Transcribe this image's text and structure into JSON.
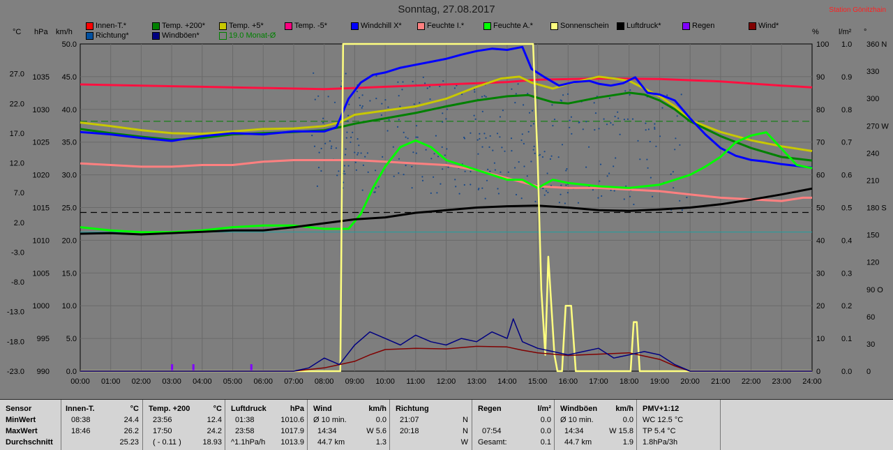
{
  "title": "Sonntag, 27.08.2017",
  "station": "Station Gönitzhain",
  "legend": [
    {
      "label": "Innen-T.*",
      "color": "#ff0000",
      "hollow": false
    },
    {
      "label": "Temp. +200*",
      "color": "#008000",
      "hollow": false
    },
    {
      "label": "Temp. +5*",
      "color": "#c8c800",
      "hollow": false
    },
    {
      "label": "Temp. -5*",
      "color": "#ff0080",
      "hollow": false
    },
    {
      "label": "Windchill X*",
      "color": "#0000ff",
      "hollow": false
    },
    {
      "label": "Feuchte I.*",
      "color": "#ff8080",
      "hollow": false
    },
    {
      "label": "Feuchte A.*",
      "color": "#00ff00",
      "hollow": false
    },
    {
      "label": "Sonnenschein",
      "color": "#ffff80",
      "hollow": false
    },
    {
      "label": "Luftdruck*",
      "color": "#000000",
      "hollow": false
    },
    {
      "label": "Regen",
      "color": "#8000ff",
      "hollow": false
    },
    {
      "label": "Wind*",
      "color": "#800000",
      "hollow": false
    },
    {
      "label": "Richtung*",
      "color": "#0050a0",
      "hollow": false
    },
    {
      "label": "Windböen*",
      "color": "#000080",
      "hollow": false
    },
    {
      "label": "19.0 Monat-Ø",
      "color": "#008000",
      "hollow": true
    }
  ],
  "units": {
    "temp": "°C",
    "pressure": "hPa",
    "wind": "km/h",
    "percent": "%",
    "rain": "l/m²",
    "dir": "°"
  },
  "chart_data": {
    "type": "line",
    "xlabel": "",
    "x_ticks": [
      "00:00",
      "01:00",
      "02:00",
      "03:00",
      "04:00",
      "05:00",
      "06:00",
      "07:00",
      "08:00",
      "09:00",
      "10:00",
      "11:00",
      "12:00",
      "13:00",
      "14:00",
      "15:00",
      "16:00",
      "17:00",
      "18:00",
      "19:00",
      "20:00",
      "21:00",
      "22:00",
      "23:00",
      "24:00"
    ],
    "xlim": [
      0,
      24
    ],
    "axes": {
      "temp": {
        "ylim": [
          -23,
          32
        ],
        "ticks": [
          "27.0",
          "22.0",
          "17.0",
          "12.0",
          "7.0",
          "2.0",
          "-3.0",
          "-8.0",
          "-13.0",
          "-18.0",
          "-23.0"
        ]
      },
      "pressure": {
        "ylim": [
          990,
          1040
        ],
        "ticks": [
          "1035",
          "1030",
          "1025",
          "1020",
          "1015",
          "1010",
          "1005",
          "1000",
          "995",
          "990"
        ]
      },
      "wind": {
        "ylim": [
          0,
          50
        ],
        "ticks": [
          "50.0",
          "45.0",
          "40.0",
          "35.0",
          "30.0",
          "25.0",
          "20.0",
          "15.0",
          "10.0",
          "5.0",
          "0.0"
        ]
      },
      "percent": {
        "ylim": [
          0,
          100
        ],
        "ticks": [
          "100",
          "90",
          "80",
          "70",
          "60",
          "50",
          "40",
          "30",
          "20",
          "10",
          "0"
        ]
      },
      "rain": {
        "ylim": [
          0,
          1
        ],
        "ticks": [
          "1.0",
          "0.9",
          "0.8",
          "0.7",
          "0.6",
          "0.5",
          "0.4",
          "0.3",
          "0.2",
          "0.1",
          "0.0"
        ]
      },
      "dir": {
        "ylim": [
          0,
          360
        ],
        "ticks": [
          "360 N",
          "330",
          "300",
          "270 W",
          "240",
          "210",
          "180 S",
          "150",
          "120",
          "90 O",
          "60",
          "30",
          "0"
        ]
      }
    },
    "series": [
      {
        "name": "Innen-T.*",
        "axis": "temp",
        "color": "#ff1040",
        "x": [
          0,
          2,
          4,
          6,
          8,
          10,
          12,
          14,
          15,
          17,
          19,
          21,
          23,
          24
        ],
        "y": [
          25.2,
          25.0,
          24.8,
          24.6,
          24.4,
          24.8,
          25.2,
          25.6,
          26.0,
          26.2,
          26.1,
          25.7,
          25.0,
          24.7
        ]
      },
      {
        "name": "Temp. +5*",
        "axis": "temp",
        "color": "#c8c800",
        "x": [
          0,
          1,
          2,
          3,
          4,
          5,
          6,
          7,
          8,
          8.5,
          9,
          10,
          11,
          12,
          13,
          13.8,
          14.4,
          14.8,
          15.5,
          16,
          17,
          17.5,
          18,
          18.5,
          19,
          19.5,
          20,
          21,
          22,
          23,
          24
        ],
        "y": [
          18.8,
          18.2,
          17.5,
          17.0,
          16.9,
          17.3,
          17.7,
          17.8,
          18.2,
          18.8,
          20.1,
          20.8,
          21.5,
          22.8,
          24.8,
          26.2,
          26.5,
          25.5,
          24.5,
          25.3,
          26.5,
          26.2,
          25.8,
          24.5,
          23.2,
          21.5,
          19.2,
          17.2,
          15.8,
          14.8,
          14.0
        ]
      },
      {
        "name": "Temp. +200*",
        "axis": "temp",
        "color": "#008000",
        "x": [
          0,
          1,
          2,
          3,
          4,
          5,
          6,
          7,
          8,
          8.5,
          9,
          10,
          11,
          12,
          13,
          14,
          14.7,
          15.5,
          16,
          17,
          18,
          18.5,
          19,
          19.5,
          20,
          21,
          22,
          23,
          24
        ],
        "y": [
          17.7,
          17.0,
          16.4,
          15.9,
          16.2,
          16.8,
          17.0,
          17.2,
          17.5,
          18.0,
          18.6,
          19.5,
          20.4,
          21.5,
          22.5,
          23.2,
          23.4,
          22.2,
          22.0,
          23.0,
          23.8,
          23.5,
          22.5,
          21.0,
          19.0,
          16.5,
          14.5,
          13.0,
          12.4
        ]
      },
      {
        "name": "Windchill X*",
        "axis": "temp",
        "color": "#0000ff",
        "x": [
          0,
          1,
          2,
          3,
          4,
          5,
          6,
          7,
          8,
          8.4,
          8.8,
          9.2,
          9.6,
          10,
          10.5,
          11,
          11.5,
          12,
          12.5,
          13,
          13.5,
          14,
          14.5,
          14.8,
          15.2,
          15.7,
          16.2,
          16.7,
          17,
          17.4,
          17.8,
          18.2,
          18.6,
          19,
          19.5,
          20,
          20.5,
          21,
          21.5,
          22,
          22.5,
          23,
          23.5,
          24
        ],
        "y": [
          17.2,
          16.8,
          16.2,
          15.7,
          16.5,
          17.0,
          16.8,
          17.3,
          17.3,
          18.0,
          22.8,
          25.5,
          26.8,
          27.2,
          28.0,
          28.5,
          29.0,
          29.5,
          30.2,
          30.8,
          31.2,
          31.0,
          31.5,
          27.8,
          26.5,
          25.0,
          25.6,
          25.8,
          25.3,
          25.0,
          25.4,
          26.4,
          23.8,
          23.5,
          22.5,
          19.5,
          16.8,
          14.5,
          13.2,
          12.5,
          12.2,
          11.8,
          11.5,
          11.2
        ]
      },
      {
        "name": "Feuchte I.*",
        "axis": "percent",
        "color": "#ff8080",
        "x": [
          0,
          1,
          2,
          3,
          4,
          5,
          6,
          7,
          8,
          9,
          10,
          11,
          12,
          13,
          14,
          15,
          16,
          17,
          18,
          19,
          20,
          21,
          22,
          23,
          23.7,
          24
        ],
        "y": [
          63.5,
          63.0,
          62.5,
          62.5,
          63.0,
          63.0,
          64.0,
          64.5,
          64.5,
          64.5,
          64.0,
          63.5,
          63.0,
          61.5,
          59.0,
          56.5,
          56.0,
          56.0,
          55.5,
          55.0,
          54.0,
          53.0,
          52.5,
          52.0,
          53.0,
          53.0
        ]
      },
      {
        "name": "Feuchte A.*",
        "axis": "percent",
        "color": "#00ff00",
        "x": [
          0,
          1,
          2,
          3,
          4,
          5,
          6,
          7,
          8,
          8.8,
          9.2,
          9.6,
          10,
          10.5,
          11,
          11.5,
          12,
          13,
          14,
          14.5,
          15,
          15.5,
          16,
          17,
          18,
          19,
          20,
          20.5,
          21,
          21.5,
          22,
          22.5,
          23,
          23.5,
          24
        ],
        "y": [
          44.0,
          43.0,
          42.5,
          42.5,
          43.0,
          44.0,
          44.5,
          44.5,
          43.5,
          43.5,
          48.0,
          56.0,
          62.5,
          68.5,
          70.5,
          68.5,
          64.5,
          61.5,
          58.5,
          58.5,
          56.0,
          58.5,
          57.5,
          56.5,
          56.0,
          57.0,
          60.0,
          62.5,
          65.5,
          70.0,
          72.0,
          73.0,
          68.0,
          63.0,
          62.0
        ]
      },
      {
        "name": "Luftdruck*",
        "axis": "pressure",
        "color": "#000000",
        "x": [
          0,
          1,
          2,
          3,
          4,
          5,
          6,
          7,
          8,
          9,
          10,
          11,
          12,
          13,
          14,
          15,
          16,
          17,
          18,
          19,
          20,
          21,
          22,
          23,
          24
        ],
        "y": [
          1011.0,
          1011.1,
          1010.9,
          1011.1,
          1011.3,
          1011.5,
          1011.5,
          1012.0,
          1012.6,
          1013.2,
          1013.5,
          1014.2,
          1014.6,
          1015.0,
          1015.2,
          1015.3,
          1015.0,
          1014.6,
          1014.5,
          1014.7,
          1015.0,
          1015.5,
          1016.2,
          1017.0,
          1017.9
        ]
      },
      {
        "name": "Sonnenschein",
        "axis": "percent",
        "color": "#ffff80",
        "x": [
          0,
          8.53,
          8.62,
          14.85,
          15.0,
          15.12,
          15.25,
          15.35,
          15.45,
          15.55,
          15.65,
          15.8,
          15.92,
          16.1,
          16.25,
          16.4,
          17.2,
          18.05,
          18.15,
          18.25,
          18.35,
          24
        ],
        "y": [
          0,
          0,
          100,
          100,
          65,
          25,
          5,
          35,
          20,
          5,
          0,
          0,
          20,
          20,
          0,
          0,
          0,
          0,
          15,
          15,
          0,
          0
        ]
      },
      {
        "name": "Wind*",
        "axis": "wind",
        "color": "#800000",
        "x": [
          0,
          7,
          8,
          8.5,
          9,
          9.5,
          10,
          11,
          12,
          13,
          14,
          14.5,
          15,
          16,
          17,
          18,
          19,
          19.5,
          20,
          24
        ],
        "y": [
          0,
          0,
          0.5,
          1.0,
          1.5,
          2.5,
          3.3,
          3.5,
          3.4,
          3.8,
          3.7,
          3.2,
          2.8,
          2.4,
          2.6,
          2.8,
          1.8,
          0.8,
          0,
          0
        ]
      },
      {
        "name": "Windböen*",
        "axis": "wind",
        "color": "#000080",
        "x": [
          0,
          7,
          7.5,
          8,
          8.5,
          9,
          9.5,
          10,
          10.5,
          11,
          11.5,
          12,
          12.5,
          13,
          13.5,
          14,
          14.2,
          14.5,
          15,
          15.5,
          16,
          16.5,
          17,
          17.5,
          18,
          18.5,
          19,
          19.5,
          20,
          24
        ],
        "y": [
          0,
          0,
          0.5,
          2.0,
          1.0,
          4.0,
          6.0,
          5.0,
          4.0,
          5.5,
          4.5,
          4.0,
          5.0,
          4.5,
          6.0,
          5.0,
          8.0,
          4.5,
          3.5,
          3.0,
          2.5,
          3.0,
          3.5,
          2.0,
          2.5,
          3.0,
          2.5,
          1.0,
          0,
          0
        ]
      }
    ],
    "reference_lines": [
      {
        "label": "19.0 Monat-Ø",
        "axis": "temp",
        "value": 19.0,
        "color": "#008000"
      }
    ]
  },
  "table": {
    "sensor": {
      "header": "Sensor",
      "rows": [
        "MinWert",
        "MaxWert",
        "Durchschnitt"
      ]
    },
    "innen": {
      "header": "Innen-T.",
      "unit": "°C",
      "rows": [
        [
          "08:38",
          "24.4"
        ],
        [
          "18:46",
          "26.2"
        ],
        [
          "",
          "25.23"
        ]
      ]
    },
    "temp200": {
      "header": "Temp. +200",
      "unit": "°C",
      "rows": [
        [
          "23:56",
          "12.4"
        ],
        [
          "17:50",
          "24.2"
        ],
        [
          "( - 0.11 )",
          "18.93"
        ]
      ]
    },
    "luftdruck": {
      "header": "Luftdruck",
      "unit": "hPa",
      "rows": [
        [
          "01:38",
          "1010.6"
        ],
        [
          "23:58",
          "1017.9"
        ],
        [
          "^1.1hPa/h",
          "1013.9"
        ]
      ]
    },
    "wind": {
      "header": "Wind",
      "unit": "km/h",
      "rows": [
        [
          "Ø 10 min.",
          "0.0"
        ],
        [
          "14:34",
          "W 5.6"
        ],
        [
          "44.7 km",
          "1.3"
        ]
      ]
    },
    "richtung": {
      "header": "Richtung",
      "rows": [
        [
          "21:07",
          "N"
        ],
        [
          "20:18",
          "N"
        ],
        [
          "",
          "W"
        ]
      ]
    },
    "regen": {
      "header": "Regen",
      "unit": "l/m²",
      "rows": [
        [
          "",
          "0.0"
        ],
        [
          "07:54",
          "0.0"
        ],
        [
          "Gesamt:",
          "0.1"
        ]
      ]
    },
    "boeen": {
      "header": "Windböen",
      "unit": "km/h",
      "rows": [
        [
          "Ø 10 min.",
          "0.0"
        ],
        [
          "14:34",
          "W 15.8"
        ],
        [
          "44.7 km",
          "1.9"
        ]
      ]
    },
    "pmv": {
      "header": "PMV+1:12",
      "rows": [
        "WC 12.5 °C",
        "TP 5.4 °C",
        "1.8hPa/3h"
      ]
    }
  }
}
